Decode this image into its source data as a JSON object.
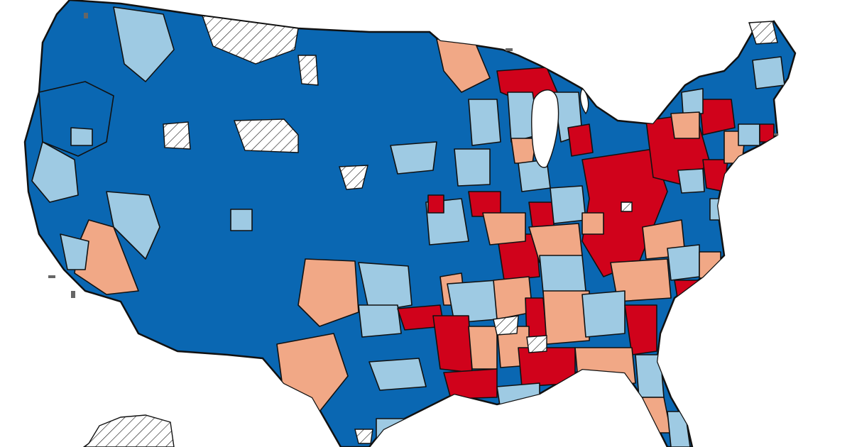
{
  "map": {
    "colors": {
      "dark_blue": "#0a67b2",
      "light_blue": "#9ecae3",
      "light_red": "#f1a886",
      "dark_red": "#d0021b",
      "no_data": "#ffffff"
    },
    "categories": [
      "dark_blue",
      "light_blue",
      "light_red",
      "dark_red",
      "no_data"
    ],
    "region_types": {
      "dark_blue": "strong_blue",
      "light_blue": "lean_blue",
      "light_red": "lean_red",
      "dark_red": "strong_red",
      "no_data": "hatched"
    }
  }
}
